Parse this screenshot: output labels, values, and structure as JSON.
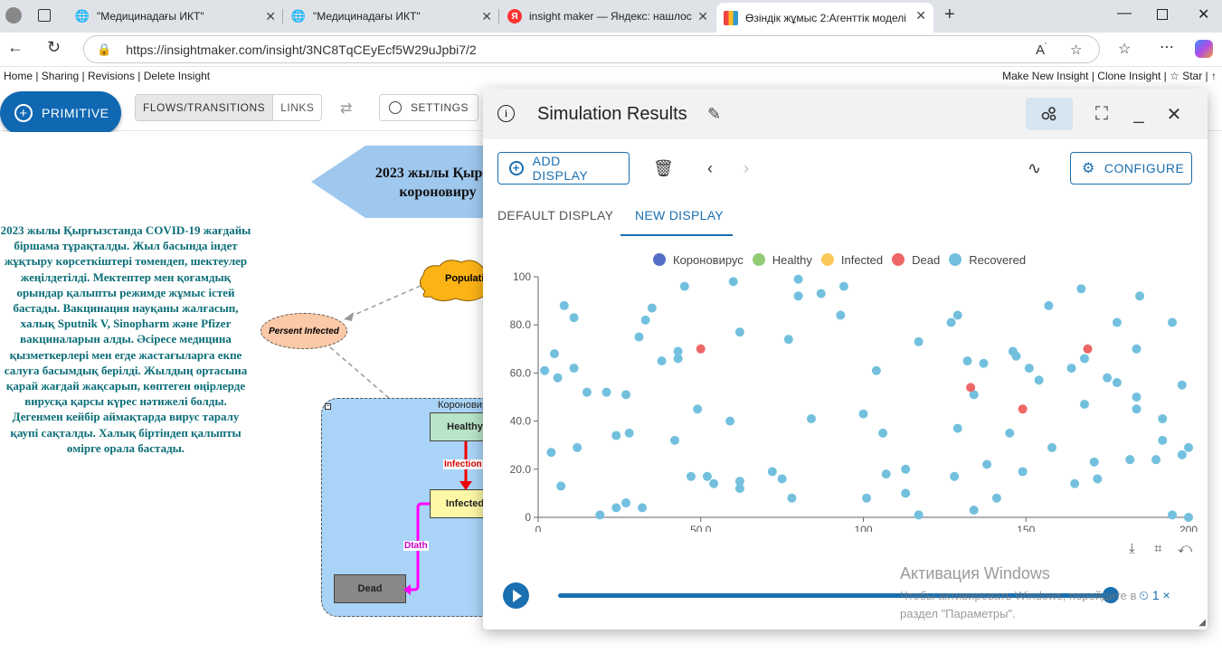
{
  "browser": {
    "tabs": [
      {
        "label": "\"Медицинадағы ИКТ\""
      },
      {
        "label": "\"Медицинадағы ИКТ\""
      },
      {
        "label": "insight maker — Яндекс: нашлос"
      },
      {
        "label": "Өзіндік жұмыс 2:Агенттік моделі"
      }
    ],
    "url": "https://insightmaker.com/insight/3NC8TqCEyEcf5W29uJpbi7/2"
  },
  "insight_links": {
    "left": "Home | Sharing | Revisions | Delete Insight",
    "right": "Make New Insight | Clone Insight | ☆ Star | ↑"
  },
  "toolbar": {
    "primitive": "PRIMITIVE",
    "flows": "FLOWS/TRANSITIONS",
    "links": "LINKS",
    "settings": "SETTINGS"
  },
  "canvas": {
    "description": "2023 жылы Қырғызстанда COVID-19 жағдайы біршама тұрақталды. Жыл басында індет жұқтыру көрсеткіштері төмендеп, шектеулер жеңілдетілді. Мектептер мен қоғамдық орындар қалыпты режимде жұмыс істей бастады. Вакцинация науқаны жалғасып, халық Sputnik V, Sinopharm және Pfizer вакциналарын алды. Әсіресе медицина қызметкерлері мен егде жастағыларға екпе салуға басымдық берілді. Жылдың ортасына қарай жағдай жақсарып, көптеген өңірлерде вирусқа қарсы күрес нәтижелі болды. Дегенмен кейбір аймақтарда вирус таралу қаупі сақталды. Халық біртіндеп қалыпты өмірге орала бастады.",
    "banner_line1": "2023 жылы Қырғы",
    "banner_line2": "короновиру",
    "population": "Populati",
    "percent_infected": "Persent Infected",
    "folder_title": "Короновир",
    "healthy": "Healthy",
    "infected": "Infected",
    "dead": "Dead",
    "flow_infection": "Infection",
    "flow_death": "Dtath"
  },
  "panel": {
    "title": "Simulation Results",
    "add_display": "ADD DISPLAY",
    "configure": "CONFIGURE",
    "tab_default": "DEFAULT DISPLAY",
    "tab_new": "NEW DISPLAY",
    "speed": "1 ×"
  },
  "colors": {
    "accent": "#1a6fb0",
    "healthy_stock": "#b8e4c8",
    "infected_stock": "#fdf7a6",
    "dead_stock": "#888888",
    "folder": "#a9d4f7"
  },
  "chart_data": {
    "type": "scatter",
    "xlim": [
      0,
      200
    ],
    "ylim": [
      0,
      100
    ],
    "xticks": [
      "0",
      "50.0",
      "100",
      "150",
      "200"
    ],
    "yticks": [
      "0",
      "20.0",
      "40.0",
      "60.0",
      "80.0",
      "100"
    ],
    "series": [
      {
        "name": "Короновирус",
        "color": "#5470c6",
        "points": []
      },
      {
        "name": "Healthy",
        "color": "#91cc75",
        "points": []
      },
      {
        "name": "Infected",
        "color": "#fac858",
        "points": []
      },
      {
        "name": "Dead",
        "color": "#ee6666",
        "points": [
          [
            50,
            70
          ],
          [
            133,
            54
          ],
          [
            149,
            45
          ],
          [
            169,
            70
          ]
        ]
      },
      {
        "name": "Recovered",
        "color": "#73c0de",
        "points": [
          [
            2,
            61
          ],
          [
            4,
            27
          ],
          [
            5,
            68
          ],
          [
            6,
            58
          ],
          [
            7,
            13
          ],
          [
            8,
            88
          ],
          [
            11,
            83
          ],
          [
            11,
            62
          ],
          [
            12,
            29
          ],
          [
            15,
            52
          ],
          [
            19,
            1
          ],
          [
            21,
            52
          ],
          [
            24,
            34
          ],
          [
            24,
            4
          ],
          [
            27,
            51
          ],
          [
            27,
            6
          ],
          [
            28,
            35
          ],
          [
            31,
            75
          ],
          [
            32,
            4
          ],
          [
            33,
            82
          ],
          [
            35,
            87
          ],
          [
            38,
            65
          ],
          [
            42,
            32
          ],
          [
            43,
            69
          ],
          [
            43,
            66
          ],
          [
            45,
            96
          ],
          [
            47,
            17
          ],
          [
            49,
            45
          ],
          [
            52,
            17
          ],
          [
            54,
            14
          ],
          [
            59,
            40
          ],
          [
            60,
            98
          ],
          [
            62,
            77
          ],
          [
            62,
            15
          ],
          [
            62,
            12
          ],
          [
            72,
            19
          ],
          [
            75,
            16
          ],
          [
            77,
            74
          ],
          [
            80,
            99
          ],
          [
            80,
            92
          ],
          [
            84,
            41
          ],
          [
            78,
            8
          ],
          [
            87,
            93
          ],
          [
            93,
            84
          ],
          [
            94,
            96
          ],
          [
            100,
            43
          ],
          [
            101,
            8
          ],
          [
            104,
            61
          ],
          [
            106,
            35
          ],
          [
            107,
            18
          ],
          [
            113,
            20
          ],
          [
            113,
            10
          ],
          [
            117,
            73
          ],
          [
            117,
            1
          ],
          [
            127,
            81
          ],
          [
            128,
            17
          ],
          [
            129,
            84
          ],
          [
            129,
            37
          ],
          [
            132,
            65
          ],
          [
            134,
            51
          ],
          [
            134,
            3
          ],
          [
            137,
            64
          ],
          [
            138,
            22
          ],
          [
            141,
            8
          ],
          [
            145,
            35
          ],
          [
            146,
            69
          ],
          [
            147,
            67
          ],
          [
            149,
            19
          ],
          [
            151,
            62
          ],
          [
            154,
            57
          ],
          [
            157,
            88
          ],
          [
            158,
            29
          ],
          [
            164,
            62
          ],
          [
            165,
            14
          ],
          [
            167,
            95
          ],
          [
            168,
            47
          ],
          [
            168,
            66
          ],
          [
            171,
            23
          ],
          [
            172,
            16
          ],
          [
            175,
            58
          ],
          [
            178,
            56
          ],
          [
            178,
            81
          ],
          [
            182,
            24
          ],
          [
            184,
            70
          ],
          [
            184,
            50
          ],
          [
            184,
            45
          ],
          [
            185,
            92
          ],
          [
            190,
            24
          ],
          [
            192,
            41
          ],
          [
            192,
            32
          ],
          [
            195,
            81
          ],
          [
            195,
            1
          ],
          [
            198,
            55
          ],
          [
            198,
            26
          ],
          [
            200,
            29
          ],
          [
            200,
            0
          ]
        ]
      }
    ]
  }
}
